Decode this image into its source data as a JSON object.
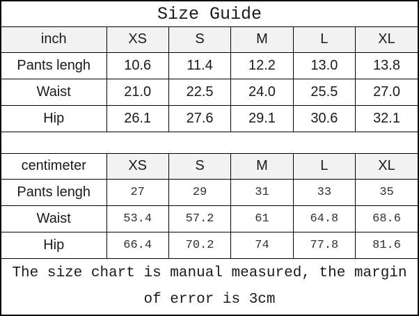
{
  "title": "Size Guide",
  "table_inch": {
    "unit_label": "inch",
    "sizes": [
      "XS",
      "S",
      "M",
      "L",
      "XL"
    ],
    "rows": [
      {
        "label": "Pants lengh",
        "values": [
          "10.6",
          "11.4",
          "12.2",
          "13.0",
          "13.8"
        ]
      },
      {
        "label": "Waist",
        "values": [
          "21.0",
          "22.5",
          "24.0",
          "25.5",
          "27.0"
        ]
      },
      {
        "label": "Hip",
        "values": [
          "26.1",
          "27.6",
          "29.1",
          "30.6",
          "32.1"
        ]
      }
    ]
  },
  "table_cm": {
    "unit_label": "centimeter",
    "sizes": [
      "XS",
      "S",
      "M",
      "L",
      "XL"
    ],
    "rows": [
      {
        "label": "Pants lengh",
        "values": [
          "27",
          "29",
          "31",
          "33",
          "35"
        ]
      },
      {
        "label": "Waist",
        "values": [
          "53.4",
          "57.2",
          "61",
          "64.8",
          "68.6"
        ]
      },
      {
        "label": "Hip",
        "values": [
          "66.4",
          "70.2",
          "74",
          "77.8",
          "81.6"
        ]
      }
    ]
  },
  "footer_note": "The size chart is manual measured, the margin of error is 3cm",
  "colors": {
    "header_bg": "#f2f2f2",
    "border": "#000000",
    "text": "#1a1a1a"
  },
  "chart_data": [
    {
      "type": "table",
      "title": "Size Guide",
      "unit": "inch",
      "columns": [
        "inch",
        "XS",
        "S",
        "M",
        "L",
        "XL"
      ],
      "rows": [
        [
          "Pants lengh",
          10.6,
          11.4,
          12.2,
          13.0,
          13.8
        ],
        [
          "Waist",
          21.0,
          22.5,
          24.0,
          25.5,
          27.0
        ],
        [
          "Hip",
          26.1,
          27.6,
          29.1,
          30.6,
          32.1
        ]
      ]
    },
    {
      "type": "table",
      "title": "Size Guide",
      "unit": "centimeter",
      "columns": [
        "centimeter",
        "XS",
        "S",
        "M",
        "L",
        "XL"
      ],
      "rows": [
        [
          "Pants lengh",
          27,
          29,
          31,
          33,
          35
        ],
        [
          "Waist",
          53.4,
          57.2,
          61,
          64.8,
          68.6
        ],
        [
          "Hip",
          66.4,
          70.2,
          74,
          77.8,
          81.6
        ]
      ],
      "note": "The size chart is manual measured, the margin of error is 3cm"
    }
  ]
}
